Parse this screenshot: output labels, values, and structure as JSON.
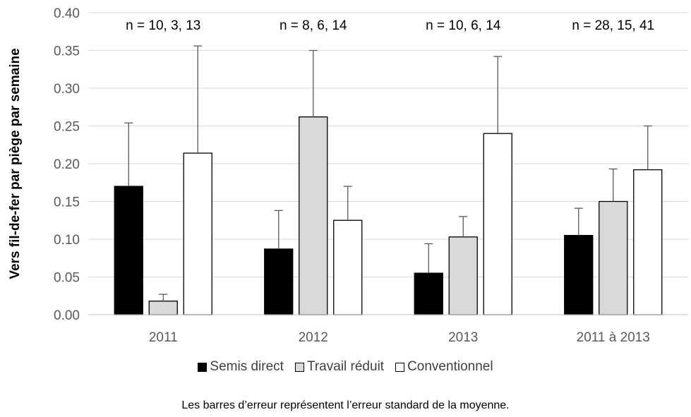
{
  "chart_data": {
    "type": "bar",
    "ylabel": "Vers fil-de-fer par piège par semaine",
    "xlabel": "",
    "ylim": [
      0,
      0.4
    ],
    "yticks": [
      "0.00",
      "0.05",
      "0.10",
      "0.15",
      "0.20",
      "0.25",
      "0.30",
      "0.35",
      "0.40"
    ],
    "grid": true,
    "legend_position": "bottom",
    "categories": [
      "2011",
      "2012",
      "2013",
      "2011 à 2013"
    ],
    "sample_sizes": [
      "n = 10, 3, 13",
      "n = 8, 6, 14",
      "n = 10, 6, 14",
      "n = 28, 15, 41"
    ],
    "series": [
      {
        "name": "Semis direct",
        "color": "#000000",
        "values": [
          0.17,
          0.087,
          0.055,
          0.105
        ],
        "errors": [
          0.084,
          0.051,
          0.039,
          0.036
        ]
      },
      {
        "name": "Travail réduit",
        "color": "#d9d9d9",
        "values": [
          0.018,
          0.262,
          0.103,
          0.15
        ],
        "errors": [
          0.009,
          0.088,
          0.027,
          0.043
        ]
      },
      {
        "name": "Conventionnel",
        "color": "#ffffff",
        "values": [
          0.214,
          0.125,
          0.24,
          0.192
        ],
        "errors": [
          0.142,
          0.045,
          0.102,
          0.058
        ]
      }
    ],
    "footnote": "Les barres d’erreur représentent l’erreur standard de la moyenne."
  }
}
